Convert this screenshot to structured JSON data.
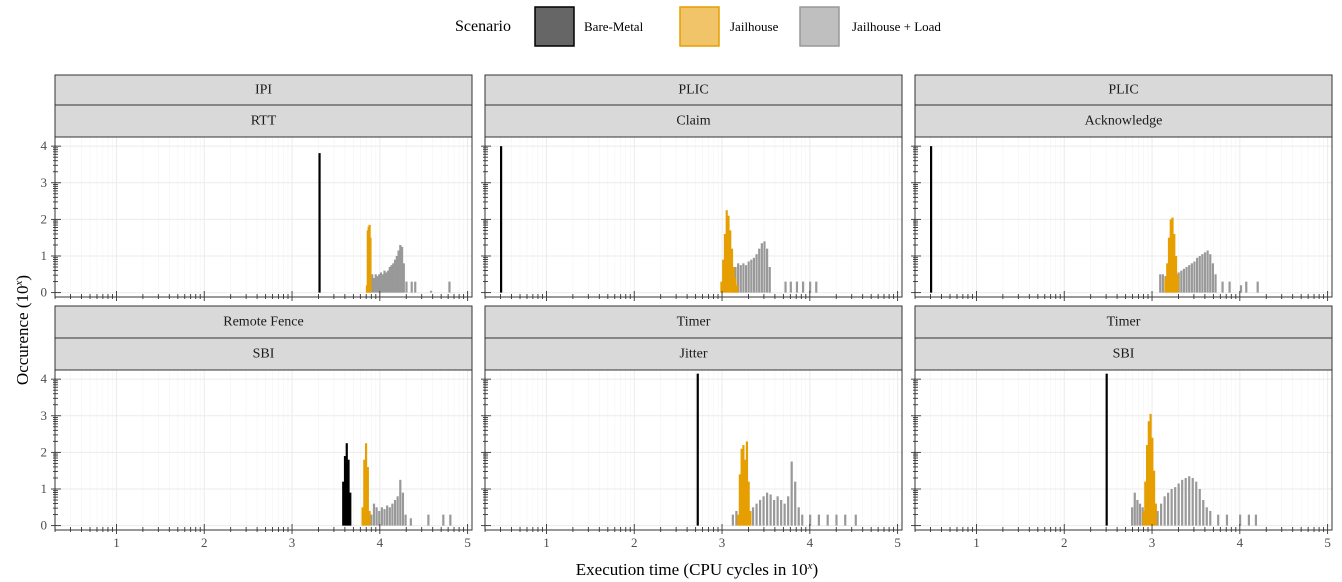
{
  "legend": {
    "title": "Scenario",
    "items": [
      {
        "label": "Bare-Metal",
        "fill": "#666666",
        "stroke": "#000000"
      },
      {
        "label": "Jailhouse",
        "fill": "#f2c46a",
        "stroke": "#e69f00"
      },
      {
        "label": "Jailhouse + Load",
        "fill": "#bfbfbf",
        "stroke": "#999999"
      }
    ]
  },
  "axes": {
    "xlabel_main": "Execution time (CPU cycles in 10",
    "xlabel_sup": "x",
    "xlabel_end": ")",
    "ylabel_main": "Occurence (10",
    "ylabel_sup": "x",
    "ylabel_end": ")",
    "x_ticks": [
      1,
      2,
      3,
      4,
      5
    ],
    "y_ticks": [
      0,
      1,
      2,
      3,
      4
    ],
    "xlim": [
      0.3,
      5.05
    ],
    "ylim": [
      -0.12,
      4.25
    ]
  },
  "colors": {
    "bare": "#000000",
    "jail": "#e69f00",
    "load": "#999999"
  },
  "chart_data": [
    {
      "type": "bar",
      "strip_top": "IPI",
      "strip_bottom": "RTT",
      "series": [
        {
          "name": "Bare-Metal",
          "bins": [
            [
              3.31,
              3.81
            ]
          ]
        },
        {
          "name": "Jailhouse",
          "bins": [
            [
              3.85,
              0.2
            ],
            [
              3.86,
              1.7
            ],
            [
              3.87,
              1.8
            ],
            [
              3.88,
              1.85
            ],
            [
              3.89,
              1.5
            ]
          ]
        },
        {
          "name": "Jailhouse + Load",
          "bins": [
            [
              3.88,
              0.3
            ],
            [
              3.91,
              0.5
            ],
            [
              3.93,
              0.4
            ],
            [
              3.95,
              0.5
            ],
            [
              3.97,
              0.45
            ],
            [
              3.99,
              0.5
            ],
            [
              4.01,
              0.55
            ],
            [
              4.03,
              0.5
            ],
            [
              4.05,
              0.6
            ],
            [
              4.07,
              0.55
            ],
            [
              4.09,
              0.6
            ],
            [
              4.11,
              0.7
            ],
            [
              4.13,
              0.75
            ],
            [
              4.15,
              0.8
            ],
            [
              4.17,
              0.9
            ],
            [
              4.19,
              1.0
            ],
            [
              4.21,
              1.15
            ],
            [
              4.23,
              1.3
            ],
            [
              4.25,
              1.25
            ],
            [
              4.27,
              0.8
            ],
            [
              4.3,
              0.3
            ],
            [
              4.36,
              0.3
            ],
            [
              4.4,
              0.3
            ],
            [
              4.58,
              0.05
            ],
            [
              4.79,
              0.3
            ]
          ]
        }
      ]
    },
    {
      "type": "bar",
      "strip_top": "PLIC",
      "strip_bottom": "Claim",
      "series": [
        {
          "name": "Bare-Metal",
          "bins": [
            [
              0.48,
              4.0
            ]
          ]
        },
        {
          "name": "Jailhouse",
          "bins": [
            [
              2.99,
              0.3
            ],
            [
              3.01,
              0.9
            ],
            [
              3.03,
              1.6
            ],
            [
              3.05,
              2.25
            ],
            [
              3.07,
              2.1
            ],
            [
              3.09,
              1.7
            ],
            [
              3.11,
              1.2
            ],
            [
              3.13,
              0.7
            ],
            [
              3.15,
              0.4
            ],
            [
              3.17,
              0.2
            ]
          ]
        },
        {
          "name": "Jailhouse + Load",
          "bins": [
            [
              3.12,
              0.6
            ],
            [
              3.15,
              0.7
            ],
            [
              3.18,
              0.8
            ],
            [
              3.21,
              0.75
            ],
            [
              3.24,
              0.8
            ],
            [
              3.27,
              0.75
            ],
            [
              3.3,
              0.85
            ],
            [
              3.33,
              0.9
            ],
            [
              3.36,
              0.95
            ],
            [
              3.39,
              1.05
            ],
            [
              3.42,
              1.2
            ],
            [
              3.45,
              1.35
            ],
            [
              3.48,
              1.4
            ],
            [
              3.51,
              1.2
            ],
            [
              3.54,
              0.7
            ],
            [
              3.72,
              0.3
            ],
            [
              3.78,
              0.3
            ],
            [
              3.85,
              0.3
            ],
            [
              3.92,
              0.3
            ],
            [
              4.0,
              0.3
            ],
            [
              4.07,
              0.3
            ]
          ]
        }
      ]
    },
    {
      "type": "bar",
      "strip_top": "PLIC",
      "strip_bottom": "Acknowledge",
      "series": [
        {
          "name": "Bare-Metal",
          "bins": [
            [
              0.48,
              4.0
            ]
          ]
        },
        {
          "name": "Jailhouse",
          "bins": [
            [
              3.15,
              0.4
            ],
            [
              3.17,
              0.8
            ],
            [
              3.19,
              1.5
            ],
            [
              3.21,
              2.0
            ],
            [
              3.23,
              2.05
            ],
            [
              3.25,
              1.6
            ],
            [
              3.27,
              1.0
            ],
            [
              3.29,
              0.5
            ]
          ]
        },
        {
          "name": "Jailhouse + Load",
          "bins": [
            [
              3.09,
              0.5
            ],
            [
              3.12,
              0.5
            ],
            [
              3.15,
              0.45
            ],
            [
              3.3,
              0.55
            ],
            [
              3.33,
              0.6
            ],
            [
              3.36,
              0.65
            ],
            [
              3.39,
              0.7
            ],
            [
              3.42,
              0.75
            ],
            [
              3.45,
              0.8
            ],
            [
              3.48,
              0.85
            ],
            [
              3.51,
              0.95
            ],
            [
              3.54,
              1.0
            ],
            [
              3.57,
              1.05
            ],
            [
              3.6,
              1.1
            ],
            [
              3.63,
              1.15
            ],
            [
              3.66,
              1.05
            ],
            [
              3.69,
              0.8
            ],
            [
              3.72,
              0.5
            ],
            [
              3.8,
              0.3
            ],
            [
              3.88,
              0.3
            ],
            [
              4.01,
              0.2
            ],
            [
              4.07,
              0.3
            ],
            [
              4.2,
              0.3
            ]
          ]
        }
      ]
    },
    {
      "type": "bar",
      "strip_top": "Remote Fence",
      "strip_bottom": "SBI",
      "series": [
        {
          "name": "Bare-Metal",
          "bins": [
            [
              3.58,
              1.2
            ],
            [
              3.6,
              1.9
            ],
            [
              3.62,
              2.25
            ],
            [
              3.64,
              1.8
            ],
            [
              3.66,
              0.9
            ]
          ]
        },
        {
          "name": "Jailhouse",
          "bins": [
            [
              3.8,
              0.5
            ],
            [
              3.82,
              1.8
            ],
            [
              3.84,
              2.25
            ],
            [
              3.86,
              1.6
            ],
            [
              3.88,
              0.4
            ]
          ]
        },
        {
          "name": "Jailhouse + Load",
          "bins": [
            [
              3.9,
              0.3
            ],
            [
              3.93,
              0.6
            ],
            [
              3.96,
              0.5
            ],
            [
              3.99,
              0.4
            ],
            [
              4.02,
              0.5
            ],
            [
              4.05,
              0.45
            ],
            [
              4.08,
              0.55
            ],
            [
              4.11,
              0.5
            ],
            [
              4.14,
              0.6
            ],
            [
              4.17,
              0.7
            ],
            [
              4.2,
              0.8
            ],
            [
              4.23,
              1.25
            ],
            [
              4.26,
              0.9
            ],
            [
              4.29,
              0.3
            ],
            [
              4.35,
              0.2
            ],
            [
              4.55,
              0.3
            ],
            [
              4.72,
              0.3
            ],
            [
              4.8,
              0.3
            ]
          ]
        }
      ]
    },
    {
      "type": "bar",
      "strip_top": "Timer",
      "strip_bottom": "Jitter",
      "series": [
        {
          "name": "Bare-Metal",
          "bins": [
            [
              2.72,
              4.15
            ]
          ]
        },
        {
          "name": "Jailhouse",
          "bins": [
            [
              3.18,
              0.3
            ],
            [
              3.2,
              1.4
            ],
            [
              3.22,
              2.1
            ],
            [
              3.24,
              2.2
            ],
            [
              3.26,
              1.8
            ],
            [
              3.28,
              2.3
            ],
            [
              3.3,
              1.2
            ],
            [
              3.32,
              0.4
            ]
          ]
        },
        {
          "name": "Jailhouse + Load",
          "bins": [
            [
              3.12,
              0.3
            ],
            [
              3.16,
              0.4
            ],
            [
              3.35,
              0.5
            ],
            [
              3.39,
              0.6
            ],
            [
              3.43,
              0.7
            ],
            [
              3.47,
              0.8
            ],
            [
              3.51,
              0.9
            ],
            [
              3.55,
              0.85
            ],
            [
              3.59,
              0.7
            ],
            [
              3.63,
              0.8
            ],
            [
              3.67,
              0.7
            ],
            [
              3.71,
              0.6
            ],
            [
              3.75,
              0.8
            ],
            [
              3.79,
              1.75
            ],
            [
              3.83,
              1.2
            ],
            [
              3.87,
              0.5
            ],
            [
              3.91,
              0.3
            ],
            [
              4.0,
              0.3
            ],
            [
              4.1,
              0.3
            ],
            [
              4.2,
              0.3
            ],
            [
              4.3,
              0.3
            ],
            [
              4.4,
              0.3
            ],
            [
              4.52,
              0.3
            ]
          ]
        }
      ]
    },
    {
      "type": "bar",
      "strip_top": "Timer",
      "strip_bottom": "SBI",
      "series": [
        {
          "name": "Bare-Metal",
          "bins": [
            [
              2.48,
              4.15
            ]
          ]
        },
        {
          "name": "Jailhouse",
          "bins": [
            [
              2.9,
              0.4
            ],
            [
              2.92,
              1.2
            ],
            [
              2.94,
              2.2
            ],
            [
              2.96,
              2.85
            ],
            [
              2.98,
              3.05
            ],
            [
              3.0,
              2.4
            ],
            [
              3.02,
              1.5
            ],
            [
              3.04,
              0.6
            ]
          ]
        },
        {
          "name": "Jailhouse + Load",
          "bins": [
            [
              2.77,
              0.5
            ],
            [
              2.8,
              0.9
            ],
            [
              2.83,
              0.7
            ],
            [
              2.86,
              0.6
            ],
            [
              2.89,
              0.5
            ],
            [
              3.06,
              0.4
            ],
            [
              3.1,
              0.6
            ],
            [
              3.14,
              0.8
            ],
            [
              3.18,
              0.9
            ],
            [
              3.22,
              1.0
            ],
            [
              3.26,
              1.05
            ],
            [
              3.3,
              1.15
            ],
            [
              3.34,
              1.25
            ],
            [
              3.38,
              1.3
            ],
            [
              3.42,
              1.35
            ],
            [
              3.46,
              1.3
            ],
            [
              3.5,
              1.2
            ],
            [
              3.54,
              1.0
            ],
            [
              3.58,
              0.7
            ],
            [
              3.62,
              0.5
            ],
            [
              3.66,
              0.4
            ],
            [
              3.75,
              0.3
            ],
            [
              3.85,
              0.3
            ],
            [
              4.0,
              0.3
            ],
            [
              4.1,
              0.3
            ],
            [
              4.18,
              0.3
            ]
          ]
        }
      ]
    }
  ]
}
